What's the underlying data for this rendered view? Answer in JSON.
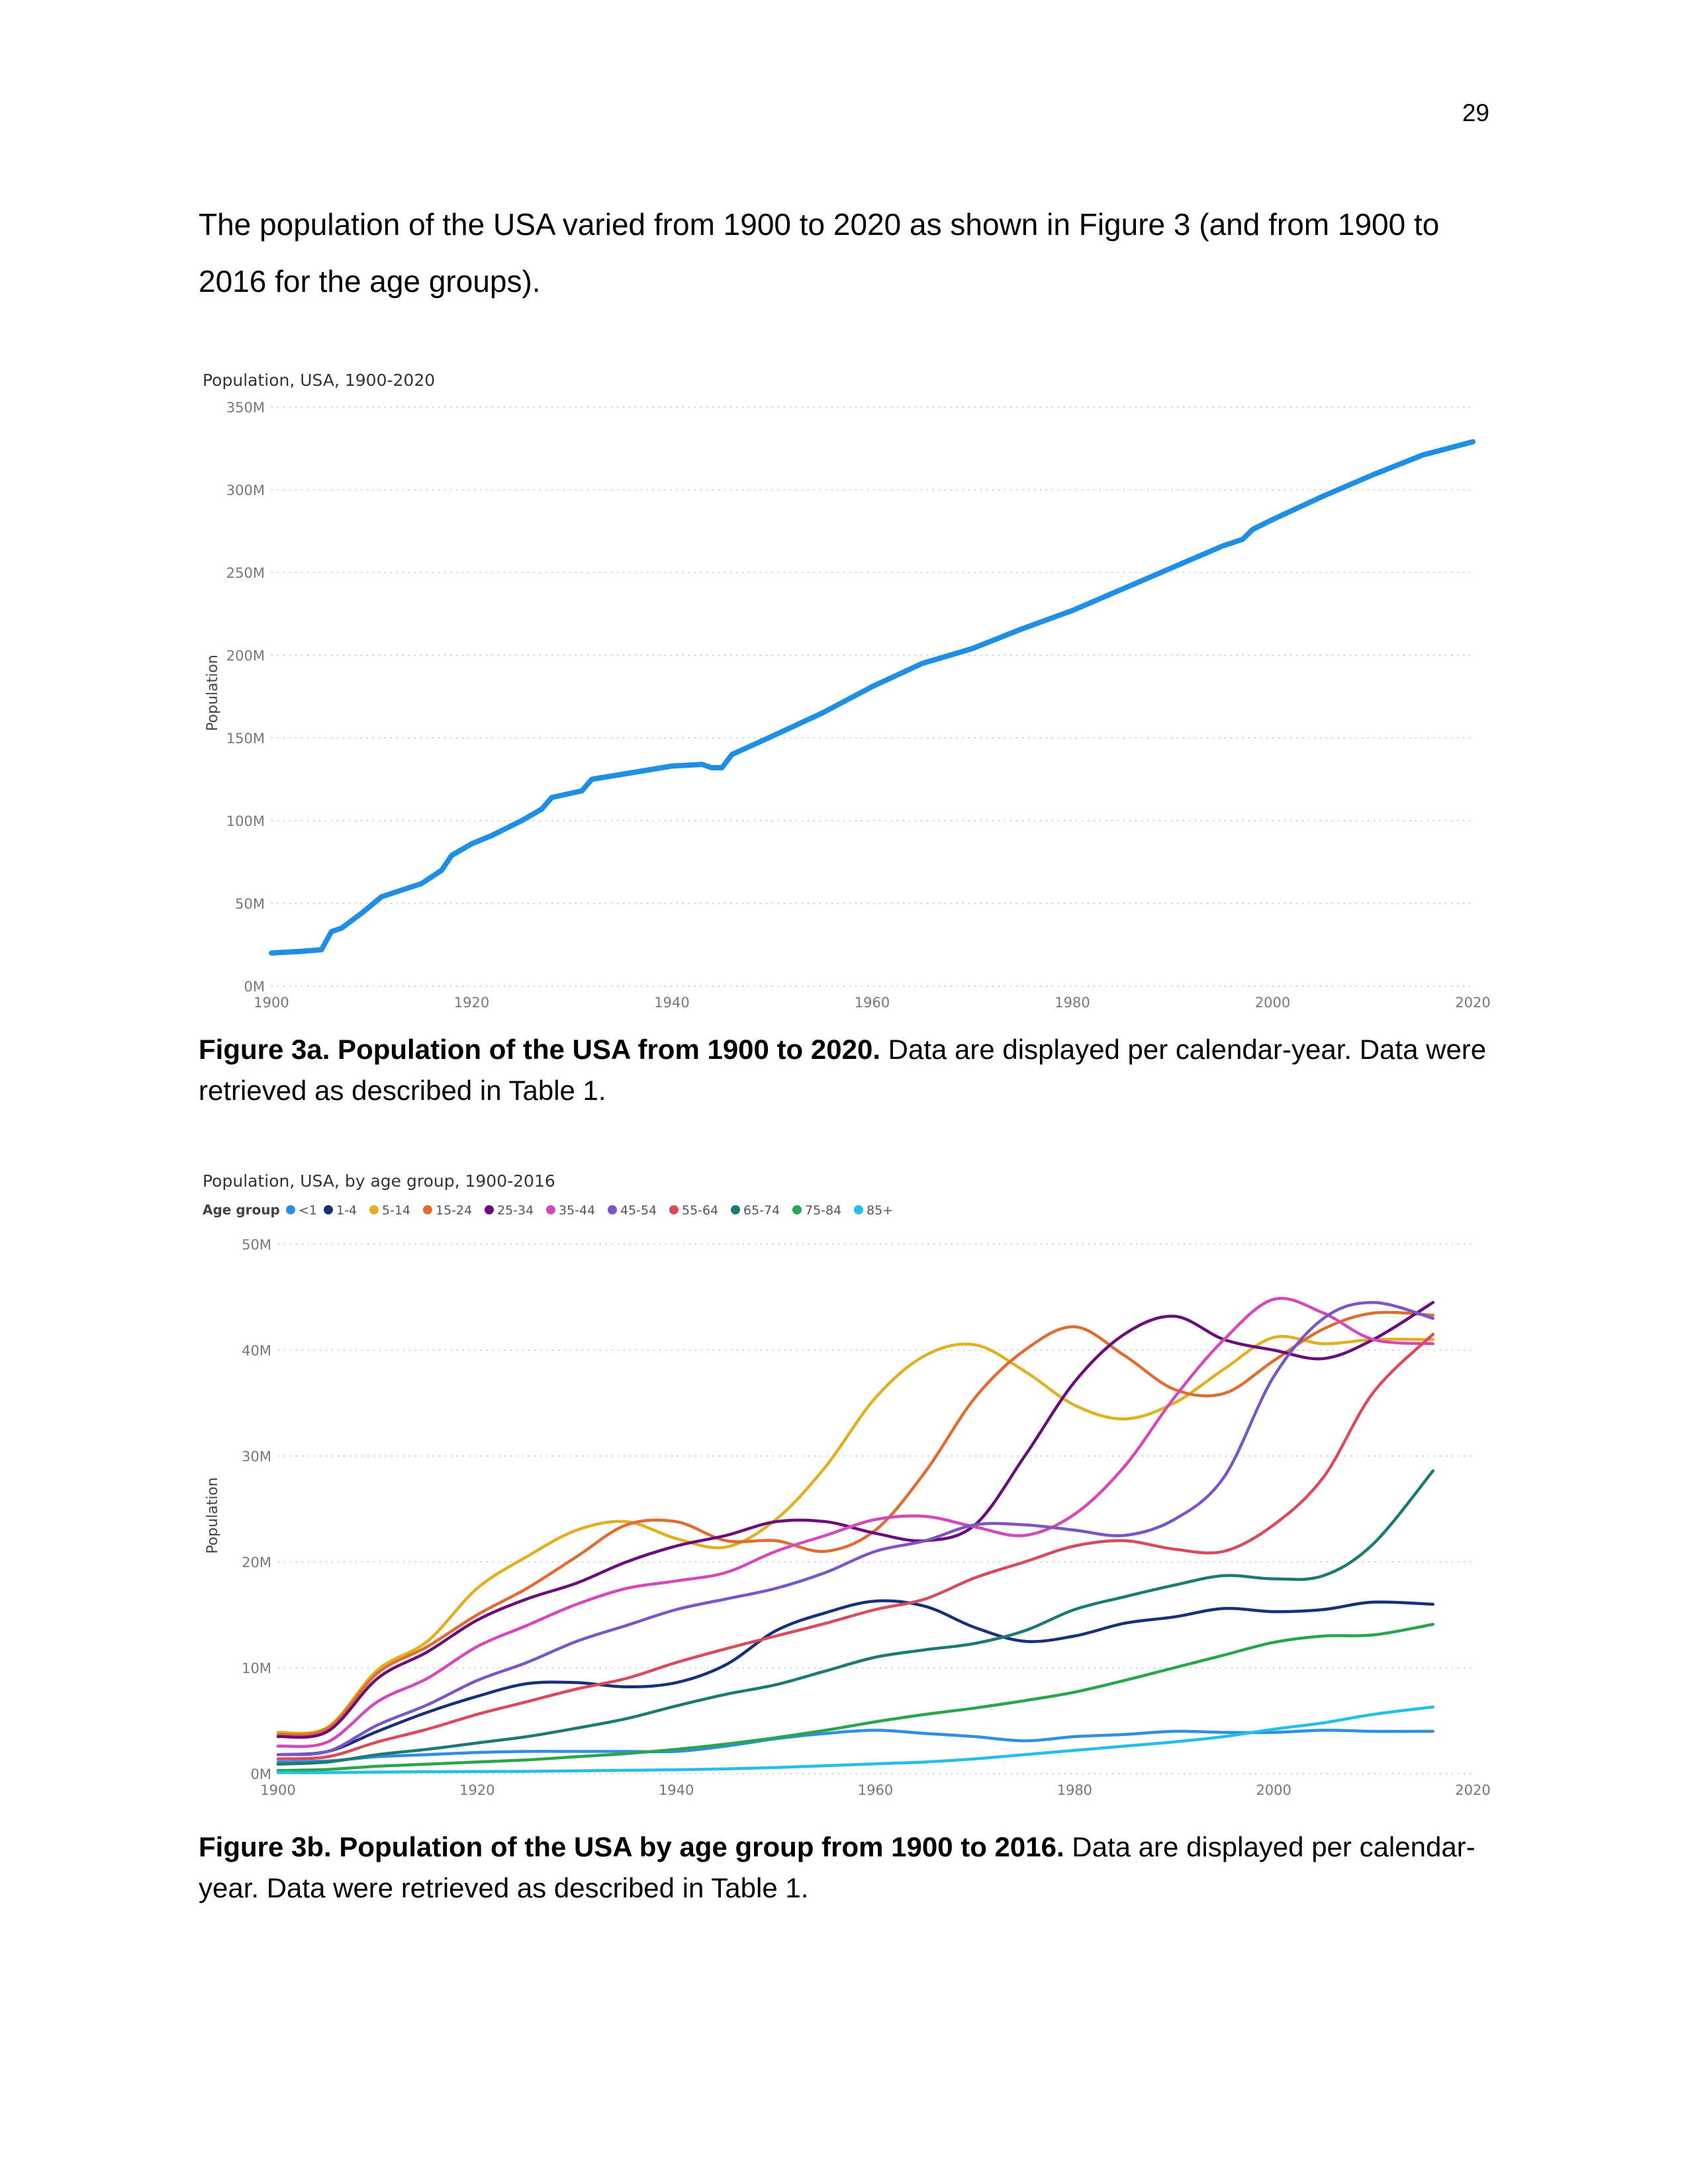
{
  "page": {
    "number": "29",
    "intro": "The population of the USA varied from 1900 to 2020 as shown in Figure 3 (and from 1900 to 2016 for the age groups).",
    "caption_a_bold": "Figure 3a. Population of the USA from 1900 to 2020.",
    "caption_a_text": " Data are displayed per calendar-year. Data were retrieved as described in Table 1.",
    "caption_b_bold": "Figure 3b. Population of the USA by age group from 1900 to 2016.",
    "caption_b_text": " Data are displayed per calendar-year. Data were retrieved as described in Table 1."
  },
  "chart_data": [
    {
      "type": "line",
      "title": "Population, USA, 1900-2020",
      "ylabel": "Population",
      "xlabel": "",
      "xlim": [
        1900,
        2020
      ],
      "ylim": [
        0,
        350
      ],
      "y_unit_suffix": "M",
      "xticks": [
        1900,
        1920,
        1940,
        1960,
        1980,
        2000,
        2020
      ],
      "yticks": [
        0,
        50,
        100,
        150,
        200,
        250,
        300,
        350
      ],
      "grid": true,
      "series": [
        {
          "color": "#1f8fe6",
          "x": [
            1900,
            1903,
            1905,
            1906,
            1907,
            1909,
            1911,
            1913,
            1915,
            1917,
            1918,
            1920,
            1922,
            1925,
            1927,
            1928,
            1931,
            1932,
            1935,
            1940,
            1943,
            1944,
            1945,
            1946,
            1950,
            1955,
            1960,
            1965,
            1970,
            1975,
            1980,
            1985,
            1990,
            1995,
            1997,
            1998,
            2000,
            2005,
            2010,
            2015,
            2020
          ],
          "y": [
            20,
            21,
            22,
            33,
            35,
            44,
            54,
            58,
            62,
            70,
            79,
            86,
            91,
            100,
            107,
            114,
            118,
            125,
            128,
            133,
            134,
            132,
            132,
            140,
            151,
            165,
            181,
            195,
            204,
            216,
            227,
            240,
            253,
            266,
            270,
            276,
            282,
            296,
            309,
            321,
            329
          ]
        }
      ]
    },
    {
      "type": "line",
      "title": "Population, USA, by age group, 1900-2016",
      "legend_title": "Age group",
      "legend_position": "top-left",
      "ylabel": "Population",
      "xlabel": "",
      "xlim": [
        1900,
        2020
      ],
      "ylim": [
        0,
        50
      ],
      "y_unit_suffix": "M",
      "xticks": [
        1900,
        1920,
        1940,
        1960,
        1980,
        2000,
        2020
      ],
      "yticks": [
        0,
        10,
        20,
        30,
        40,
        50
      ],
      "grid": true,
      "x": [
        1900,
        1905,
        1910,
        1915,
        1920,
        1925,
        1930,
        1935,
        1940,
        1945,
        1950,
        1955,
        1960,
        1965,
        1970,
        1975,
        1980,
        1985,
        1990,
        1995,
        2000,
        2005,
        2010,
        2016
      ],
      "series": [
        {
          "name": "<1",
          "color": "#2f8fe0",
          "values": [
            1.1,
            1.2,
            1.6,
            1.8,
            2.0,
            2.1,
            2.1,
            2.1,
            2.1,
            2.6,
            3.3,
            3.8,
            4.1,
            3.8,
            3.5,
            3.1,
            3.5,
            3.7,
            4.0,
            3.9,
            3.9,
            4.1,
            4.0,
            4.0
          ]
        },
        {
          "name": "1-4",
          "color": "#17307a",
          "values": [
            1.8,
            2.1,
            4.0,
            5.8,
            7.3,
            8.5,
            8.6,
            8.2,
            8.6,
            10.3,
            13.5,
            15.2,
            16.3,
            15.8,
            13.8,
            12.5,
            13.0,
            14.2,
            14.8,
            15.6,
            15.3,
            15.5,
            16.2,
            16.0
          ]
        },
        {
          "name": "5-14",
          "color": "#e0b020",
          "values": [
            3.9,
            4.4,
            9.8,
            12.5,
            17.5,
            20.5,
            23.0,
            23.8,
            22.2,
            21.4,
            24.0,
            29.0,
            35.5,
            39.5,
            40.5,
            38.0,
            34.8,
            33.5,
            35.0,
            38.2,
            41.2,
            40.6,
            41.0,
            41.0
          ]
        },
        {
          "name": "15-24",
          "color": "#e06c32",
          "values": [
            3.7,
            4.3,
            9.5,
            12.0,
            15.0,
            17.5,
            20.5,
            23.5,
            23.8,
            22.0,
            22.0,
            21.0,
            23.0,
            28.5,
            35.5,
            40.0,
            42.2,
            39.5,
            36.3,
            35.9,
            39.0,
            42.0,
            43.5,
            43.3
          ]
        },
        {
          "name": "25-34",
          "color": "#6a0d7a",
          "values": [
            3.5,
            4.0,
            9.0,
            11.5,
            14.5,
            16.5,
            18.0,
            20.0,
            21.5,
            22.5,
            23.8,
            23.8,
            22.7,
            22.0,
            23.5,
            30.0,
            37.0,
            41.5,
            43.2,
            41.0,
            40.0,
            39.2,
            41.0,
            44.5
          ]
        },
        {
          "name": "35-44",
          "color": "#d548b8",
          "values": [
            2.6,
            3.0,
            6.8,
            9.0,
            12.0,
            14.0,
            16.0,
            17.5,
            18.2,
            19.0,
            21.0,
            22.5,
            24.0,
            24.3,
            23.3,
            22.5,
            24.5,
            29.0,
            35.5,
            41.0,
            44.8,
            43.5,
            41.0,
            40.6
          ]
        },
        {
          "name": "45-54",
          "color": "#7a55c6",
          "values": [
            1.8,
            2.1,
            4.6,
            6.5,
            8.8,
            10.5,
            12.5,
            14.0,
            15.5,
            16.5,
            17.5,
            19.0,
            21.0,
            22.0,
            23.5,
            23.5,
            23.0,
            22.5,
            24.0,
            28.0,
            37.5,
            43.0,
            44.5,
            43.0
          ]
        },
        {
          "name": "55-64",
          "color": "#d84b5a",
          "values": [
            1.4,
            1.6,
            3.0,
            4.2,
            5.6,
            6.8,
            8.0,
            9.0,
            10.5,
            11.8,
            13.0,
            14.2,
            15.5,
            16.5,
            18.5,
            20.0,
            21.5,
            22.0,
            21.2,
            21.0,
            23.5,
            28.0,
            36.0,
            41.5
          ]
        },
        {
          "name": "65-74",
          "color": "#1a7a74",
          "values": [
            0.9,
            1.1,
            1.8,
            2.3,
            2.9,
            3.5,
            4.3,
            5.2,
            6.4,
            7.5,
            8.4,
            9.7,
            11.0,
            11.7,
            12.3,
            13.5,
            15.5,
            16.7,
            17.8,
            18.7,
            18.4,
            18.7,
            21.7,
            28.6
          ]
        },
        {
          "name": "75-84",
          "color": "#2aa64a",
          "values": [
            0.3,
            0.4,
            0.7,
            0.9,
            1.1,
            1.3,
            1.6,
            1.9,
            2.3,
            2.8,
            3.4,
            4.1,
            4.9,
            5.6,
            6.2,
            6.9,
            7.7,
            8.8,
            10.0,
            11.2,
            12.4,
            13.0,
            13.1,
            14.1
          ]
        },
        {
          "name": "85+",
          "color": "#22c0e8",
          "values": [
            0.1,
            0.1,
            0.15,
            0.18,
            0.2,
            0.22,
            0.27,
            0.32,
            0.37,
            0.45,
            0.58,
            0.75,
            0.93,
            1.1,
            1.4,
            1.8,
            2.2,
            2.6,
            3.0,
            3.5,
            4.2,
            4.8,
            5.6,
            6.3
          ]
        }
      ]
    }
  ]
}
